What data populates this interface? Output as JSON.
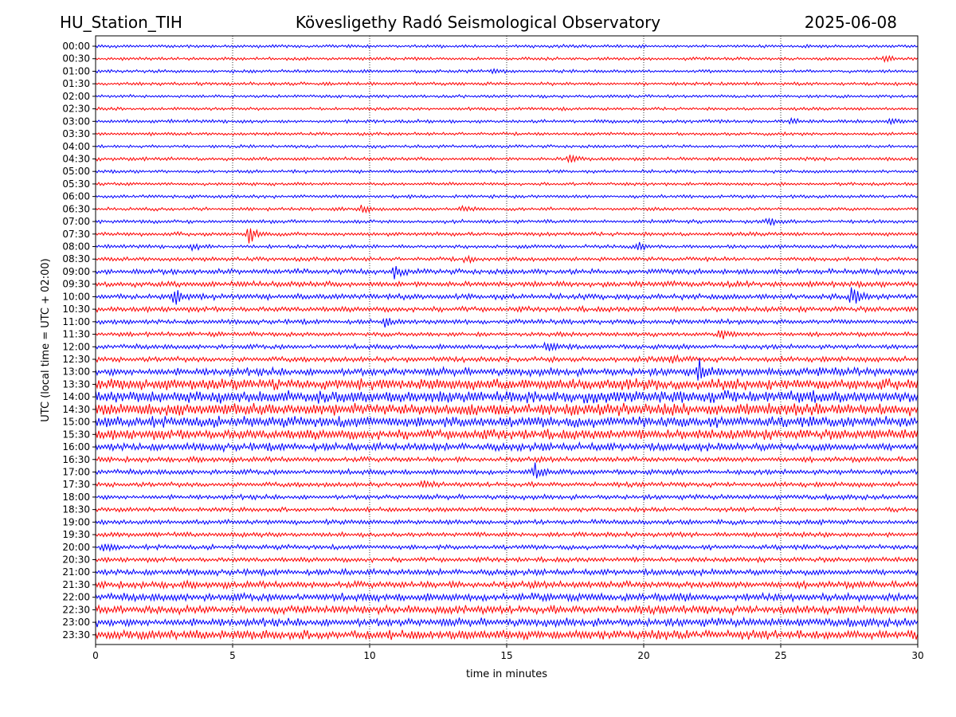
{
  "header": {
    "station": "HU_Station_TIH",
    "observatory": "Kövesligethy Radó Seismological Observatory",
    "date": "2025-06-08"
  },
  "chart_data": {
    "type": "line",
    "subtype": "helicorder",
    "xlabel": "time in minutes",
    "ylabel": "UTC (local time = UTC + 02:00)",
    "xlim": [
      0,
      30
    ],
    "x_ticks": [
      "0",
      "5",
      "10",
      "15",
      "20",
      "25",
      "30"
    ],
    "x_tick_values": [
      0,
      5,
      10,
      15,
      20,
      25,
      30
    ],
    "grid": "vertical dotted at x ticks",
    "colors": [
      "#0000ff",
      "#ff0000"
    ],
    "rows": [
      {
        "label": "00:00",
        "amp": 0.7,
        "events": []
      },
      {
        "label": "00:30",
        "amp": 0.7,
        "events": [
          {
            "t": 28.8,
            "a": 1.2
          }
        ]
      },
      {
        "label": "01:00",
        "amp": 0.7,
        "events": [
          {
            "t": 14.5,
            "a": 1.0
          }
        ]
      },
      {
        "label": "01:30",
        "amp": 0.75,
        "events": []
      },
      {
        "label": "02:00",
        "amp": 0.7,
        "events": []
      },
      {
        "label": "02:30",
        "amp": 0.7,
        "events": []
      },
      {
        "label": "03:00",
        "amp": 0.8,
        "events": [
          {
            "t": 25.4,
            "a": 1.5
          },
          {
            "t": 29.0,
            "a": 1.4
          }
        ]
      },
      {
        "label": "03:30",
        "amp": 0.7,
        "events": []
      },
      {
        "label": "04:00",
        "amp": 0.7,
        "events": []
      },
      {
        "label": "04:30",
        "amp": 0.8,
        "events": [
          {
            "t": 17.3,
            "a": 2.5
          }
        ]
      },
      {
        "label": "05:00",
        "amp": 0.75,
        "events": []
      },
      {
        "label": "05:30",
        "amp": 0.7,
        "events": []
      },
      {
        "label": "06:00",
        "amp": 0.75,
        "events": []
      },
      {
        "label": "06:30",
        "amp": 0.75,
        "events": [
          {
            "t": 9.7,
            "a": 2.0
          },
          {
            "t": 13.4,
            "a": 2.0
          }
        ]
      },
      {
        "label": "07:00",
        "amp": 0.8,
        "events": [
          {
            "t": 24.5,
            "a": 2.0
          }
        ]
      },
      {
        "label": "07:30",
        "amp": 0.9,
        "events": [
          {
            "t": 5.6,
            "a": 4.5
          }
        ]
      },
      {
        "label": "08:00",
        "amp": 0.85,
        "events": [
          {
            "t": 3.5,
            "a": 2.0
          },
          {
            "t": 19.8,
            "a": 1.8
          }
        ]
      },
      {
        "label": "08:30",
        "amp": 0.9,
        "events": [
          {
            "t": 13.5,
            "a": 1.5
          }
        ]
      },
      {
        "label": "09:00",
        "amp": 1.2,
        "events": [
          {
            "t": 10.9,
            "a": 2.5
          }
        ]
      },
      {
        "label": "09:30",
        "amp": 1.3,
        "events": []
      },
      {
        "label": "10:00",
        "amp": 1.3,
        "events": [
          {
            "t": 2.9,
            "a": 3.5
          },
          {
            "t": 27.6,
            "a": 4.0
          }
        ]
      },
      {
        "label": "10:30",
        "amp": 1.2,
        "events": []
      },
      {
        "label": "11:00",
        "amp": 1.1,
        "events": [
          {
            "t": 10.6,
            "a": 2.0
          }
        ]
      },
      {
        "label": "11:30",
        "amp": 1.0,
        "events": [
          {
            "t": 22.8,
            "a": 2.5
          }
        ]
      },
      {
        "label": "12:00",
        "amp": 1.1,
        "events": [
          {
            "t": 16.5,
            "a": 2.0
          }
        ]
      },
      {
        "label": "12:30",
        "amp": 1.2,
        "events": [
          {
            "t": 21.0,
            "a": 2.0
          }
        ]
      },
      {
        "label": "13:00",
        "amp": 1.8,
        "events": [
          {
            "t": 22.0,
            "a": 4.5
          }
        ]
      },
      {
        "label": "13:30",
        "amp": 2.5,
        "events": []
      },
      {
        "label": "14:00",
        "amp": 2.8,
        "events": []
      },
      {
        "label": "14:30",
        "amp": 2.8,
        "events": []
      },
      {
        "label": "15:00",
        "amp": 2.5,
        "events": []
      },
      {
        "label": "15:30",
        "amp": 2.3,
        "events": []
      },
      {
        "label": "16:00",
        "amp": 1.8,
        "events": []
      },
      {
        "label": "16:30",
        "amp": 1.2,
        "events": []
      },
      {
        "label": "17:00",
        "amp": 1.2,
        "events": [
          {
            "t": 16.0,
            "a": 3.5
          }
        ]
      },
      {
        "label": "17:30",
        "amp": 1.1,
        "events": [
          {
            "t": 11.9,
            "a": 2.0
          }
        ]
      },
      {
        "label": "18:00",
        "amp": 1.1,
        "events": []
      },
      {
        "label": "18:30",
        "amp": 1.0,
        "events": []
      },
      {
        "label": "19:00",
        "amp": 1.1,
        "events": []
      },
      {
        "label": "19:30",
        "amp": 1.1,
        "events": []
      },
      {
        "label": "20:00",
        "amp": 1.1,
        "events": [
          {
            "t": 0.3,
            "a": 1.5
          }
        ]
      },
      {
        "label": "20:30",
        "amp": 1.1,
        "events": []
      },
      {
        "label": "21:00",
        "amp": 1.4,
        "events": []
      },
      {
        "label": "21:30",
        "amp": 1.6,
        "events": []
      },
      {
        "label": "22:00",
        "amp": 1.8,
        "events": []
      },
      {
        "label": "22:30",
        "amp": 1.9,
        "events": []
      },
      {
        "label": "23:00",
        "amp": 1.9,
        "events": []
      },
      {
        "label": "23:30",
        "amp": 2.1,
        "events": []
      }
    ]
  }
}
